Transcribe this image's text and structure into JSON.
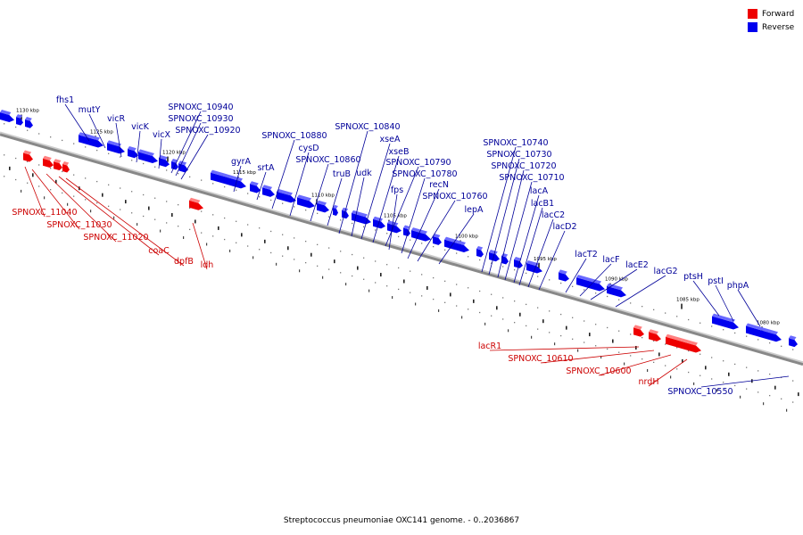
{
  "caption": "Streptococcus pneumoniae OXC141 genome. - 0..2036867",
  "legend": {
    "forward_label": "Forward",
    "reverse_label": "Reverse",
    "forward_color": "#ee0000",
    "reverse_color": "#0000ee"
  },
  "colors": {
    "axis": "#888888",
    "forward_label": "#cc0000",
    "reverse_label": "#000099"
  },
  "chart_data": {
    "type": "genome-map",
    "kbp_ticks": [
      "1130 kbp",
      "1125 kbp",
      "1120 kbp",
      "1115 kbp",
      "1110 kbp",
      "1105 kbp",
      "1100 kbp",
      "1095 kbp",
      "1090 kbp",
      "1085 kbp",
      "1080 kbp"
    ],
    "reverse_genes": [
      "fhs1",
      "mutY",
      "vicR",
      "vicK",
      "vicX",
      "SPNOXC_10940",
      "SPNOXC_10930",
      "SPNOXC_10920",
      "gyrA",
      "srtA",
      "SPNOXC_10880",
      "cysD",
      "SPNOXC_10860",
      "truB",
      "SPNOXC_10840",
      "udk",
      "xseA",
      "xseB",
      "SPNOXC_10790",
      "fps",
      "SPNOXC_10780",
      "recN",
      "SPNOXC_10760",
      "lepA",
      "SPNOXC_10740",
      "SPNOXC_10730",
      "SPNOXC_10720",
      "SPNOXC_10710",
      "lacA",
      "lacB1",
      "lacC2",
      "lacD2",
      "lacT2",
      "lacF",
      "lacE2",
      "lacG2",
      "ptsH",
      "pstI",
      "phpA",
      "SPNOXC_10550"
    ],
    "forward_genes": [
      "SPNOXC_11040",
      "SPNOXC_11030",
      "SPNOXC_11020",
      "coaC",
      "dpfB",
      "ldh",
      "lacR1",
      "SPNOXC_10610",
      "SPNOXC_10600",
      "nrdH"
    ]
  }
}
